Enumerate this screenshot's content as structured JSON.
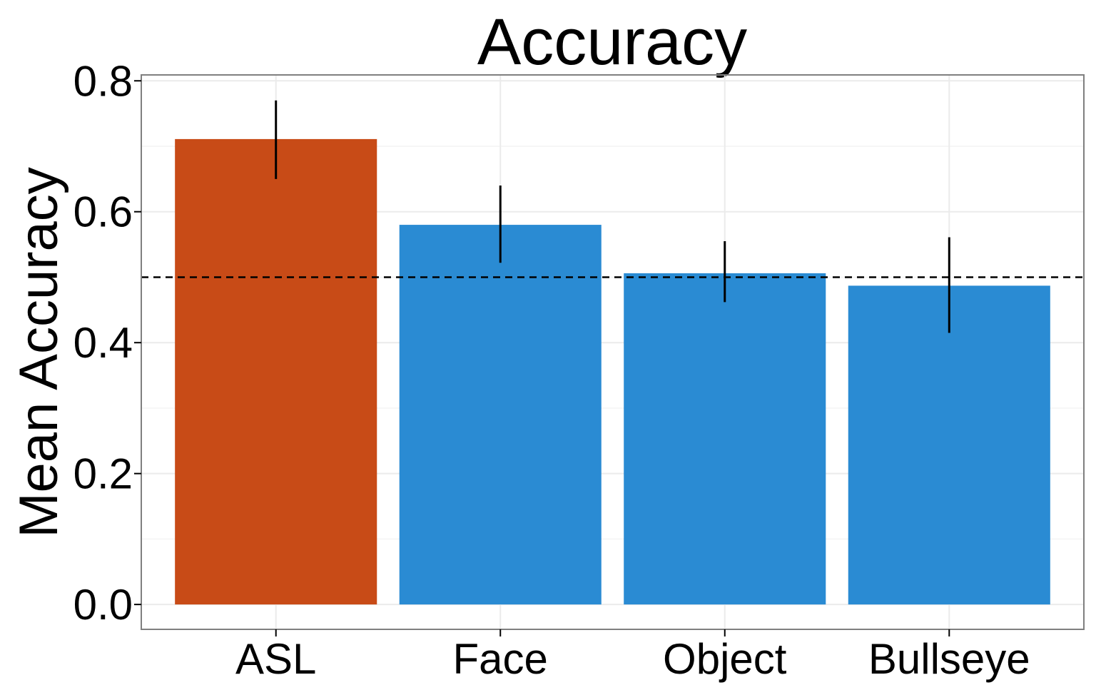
{
  "chart_data": {
    "type": "bar",
    "title": "Accuracy",
    "xlabel": "",
    "ylabel": "Mean Accuracy",
    "categories": [
      "ASL",
      "Face",
      "Object",
      "Bullseye"
    ],
    "values": [
      0.711,
      0.58,
      0.506,
      0.487
    ],
    "error_low": [
      0.65,
      0.522,
      0.462,
      0.415
    ],
    "error_high": [
      0.77,
      0.64,
      0.555,
      0.561
    ],
    "bar_colors": [
      "#c84b17",
      "#2a8bd3",
      "#2a8bd3",
      "#2a8bd3"
    ],
    "ylim": [
      -0.038,
      0.809
    ],
    "yticks": [
      0.0,
      0.2,
      0.4,
      0.6,
      0.8
    ],
    "ytick_labels": [
      "0.0",
      "0.2",
      "0.4",
      "0.6",
      "0.8"
    ],
    "reference_line": 0.5,
    "grid": true,
    "legend": "none",
    "colors": {
      "panel_border": "#7f7f7f",
      "grid": "#ebebeb",
      "text": "#000000"
    }
  }
}
